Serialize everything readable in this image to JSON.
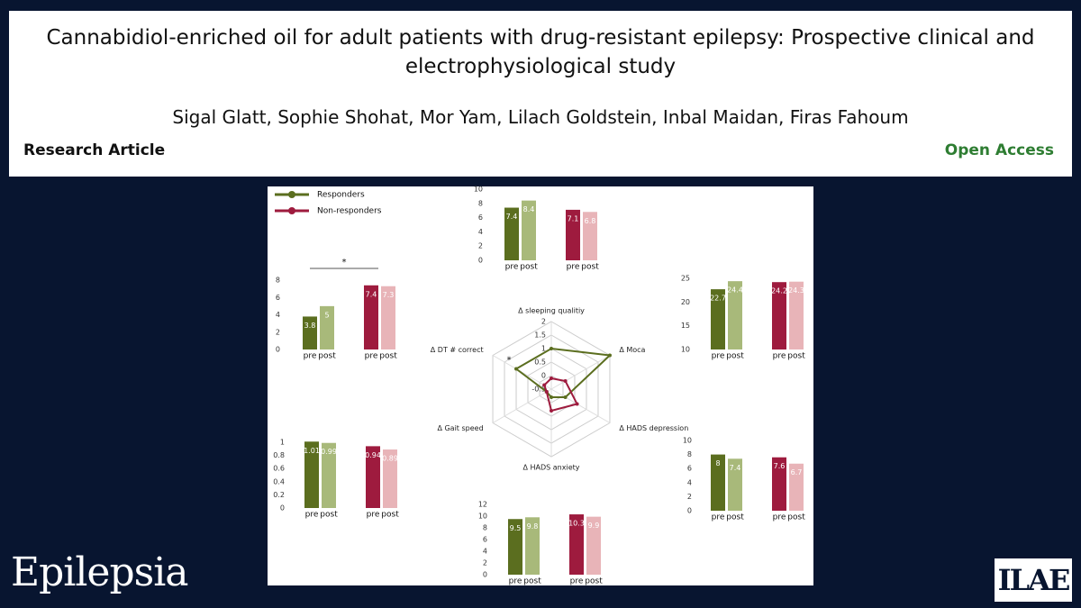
{
  "header": {
    "title": "Cannabidiol-enriched oil for adult patients with drug-resistant epilepsy: Prospective clinical and electrophysiological study",
    "authors": "Sigal Glatt, Sophie Shohat, Mor Yam, Lilach Goldstein, Inbal Maidan, Firas Fahoum",
    "article_type": "Research Article",
    "access": "Open Access"
  },
  "footer": {
    "journal": "Epilepsia",
    "society": "ILAE"
  },
  "chart_data": [
    {
      "type": "radar",
      "axes": [
        "Δ sleeping qualitiy",
        "Δ Moca",
        "Δ HADS depression",
        "Δ HADS anxiety",
        "Δ Gait speed",
        "Δ DT # correct"
      ],
      "rlim": [
        -0.5,
        2
      ],
      "rticks": [
        -0.5,
        0,
        0.5,
        1,
        1.5,
        2
      ],
      "series": [
        {
          "name": "Responders",
          "color": "#5b6e1f",
          "values": [
            1,
            2,
            0.1,
            -0.2,
            -0.3,
            1
          ]
        },
        {
          "name": "Non-responders",
          "color": "#9e1b3e",
          "values": [
            -0.1,
            0.1,
            0.6,
            0.3,
            -0.3,
            -0.2
          ]
        }
      ],
      "annotation": "*"
    },
    {
      "type": "bar",
      "categories": [
        "pre",
        "post",
        "pre",
        "post"
      ],
      "values": [
        7.4,
        8.4,
        7.1,
        6.8
      ],
      "colors": [
        "#5b6e1f",
        "#a8b97a",
        "#9e1b3e",
        "#e8b4b8"
      ],
      "ylim": [
        0,
        10
      ],
      "yticks": [
        0,
        2,
        4,
        6,
        8,
        10
      ]
    },
    {
      "type": "bar",
      "categories": [
        "pre",
        "post",
        "pre",
        "post"
      ],
      "values": [
        3.8,
        5,
        7.4,
        7.3
      ],
      "colors": [
        "#5b6e1f",
        "#a8b97a",
        "#9e1b3e",
        "#e8b4b8"
      ],
      "ylim": [
        0,
        8
      ],
      "yticks": [
        0,
        2,
        4,
        6,
        8
      ],
      "annotation": "*"
    },
    {
      "type": "bar",
      "categories": [
        "pre",
        "post",
        "pre",
        "post"
      ],
      "values": [
        22.7,
        24.4,
        24.2,
        24.3
      ],
      "colors": [
        "#5b6e1f",
        "#a8b97a",
        "#9e1b3e",
        "#e8b4b8"
      ],
      "ylim": [
        10,
        25
      ],
      "yticks": [
        10,
        15,
        20,
        25
      ]
    },
    {
      "type": "bar",
      "categories": [
        "pre",
        "post",
        "pre",
        "post"
      ],
      "values": [
        1.01,
        0.99,
        0.94,
        0.89
      ],
      "colors": [
        "#5b6e1f",
        "#a8b97a",
        "#9e1b3e",
        "#e8b4b8"
      ],
      "ylim": [
        0,
        1
      ],
      "yticks": [
        0,
        0.2,
        0.4,
        0.6,
        0.8,
        1
      ]
    },
    {
      "type": "bar",
      "categories": [
        "pre",
        "post",
        "pre",
        "post"
      ],
      "values": [
        8,
        7.4,
        7.6,
        6.7
      ],
      "colors": [
        "#5b6e1f",
        "#a8b97a",
        "#9e1b3e",
        "#e8b4b8"
      ],
      "ylim": [
        0,
        10
      ],
      "yticks": [
        0,
        2,
        4,
        6,
        8,
        10
      ]
    },
    {
      "type": "bar",
      "categories": [
        "pre",
        "post",
        "pre",
        "post"
      ],
      "values": [
        9.5,
        9.8,
        10.3,
        9.9
      ],
      "colors": [
        "#5b6e1f",
        "#a8b97a",
        "#9e1b3e",
        "#e8b4b8"
      ],
      "ylim": [
        0,
        12
      ],
      "yticks": [
        0,
        2,
        4,
        6,
        8,
        10,
        12
      ]
    }
  ]
}
